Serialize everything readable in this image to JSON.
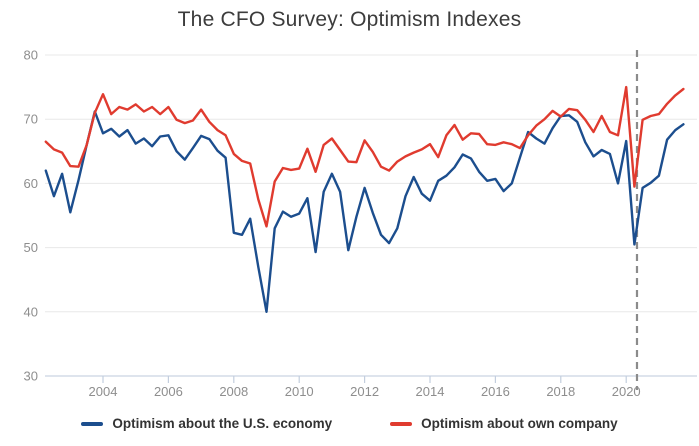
{
  "title": "The CFO Survey: Optimism Indexes",
  "chart_data": {
    "type": "line",
    "x_unit": "quarter",
    "x_start": 2002.25,
    "x_step": 0.25,
    "quarters": [
      "2002 Q2",
      "2002 Q3",
      "2002 Q4",
      "2003 Q1",
      "2003 Q2",
      "2003 Q3",
      "2003 Q4",
      "2004 Q1",
      "2004 Q2",
      "2004 Q3",
      "2004 Q4",
      "2005 Q1",
      "2005 Q2",
      "2005 Q3",
      "2005 Q4",
      "2006 Q1",
      "2006 Q2",
      "2006 Q3",
      "2006 Q4",
      "2007 Q1",
      "2007 Q2",
      "2007 Q3",
      "2007 Q4",
      "2008 Q1",
      "2008 Q2",
      "2008 Q3",
      "2008 Q4",
      "2009 Q1",
      "2009 Q2",
      "2009 Q3",
      "2009 Q4",
      "2010 Q1",
      "2010 Q2",
      "2010 Q3",
      "2010 Q4",
      "2011 Q1",
      "2011 Q2",
      "2011 Q3",
      "2011 Q4",
      "2012 Q1",
      "2012 Q2",
      "2012 Q3",
      "2012 Q4",
      "2013 Q1",
      "2013 Q2",
      "2013 Q3",
      "2013 Q4",
      "2014 Q1",
      "2014 Q2",
      "2014 Q3",
      "2014 Q4",
      "2015 Q1",
      "2015 Q2",
      "2015 Q3",
      "2015 Q4",
      "2016 Q1",
      "2016 Q2",
      "2016 Q3",
      "2016 Q4",
      "2017 Q1",
      "2017 Q2",
      "2017 Q3",
      "2017 Q4",
      "2018 Q1",
      "2018 Q2",
      "2018 Q3",
      "2018 Q4",
      "2019 Q1",
      "2019 Q2",
      "2019 Q3",
      "2019 Q4",
      "2020 Q1",
      "2020 Q2",
      "2020 Q3",
      "2020 Q4",
      "2021 Q1",
      "2021 Q2",
      "2021 Q3",
      "2021 Q4"
    ],
    "series": [
      {
        "name": "Optimism about the U.S. economy",
        "color": "#1c4e8e",
        "values": [
          62.0,
          58.0,
          61.5,
          55.5,
          60.5,
          66.0,
          71.2,
          67.8,
          68.5,
          67.3,
          68.3,
          66.2,
          67.0,
          65.8,
          67.3,
          67.5,
          65.0,
          63.7,
          65.5,
          67.4,
          66.9,
          65.1,
          64.0,
          52.3,
          52.0,
          54.5,
          47.0,
          40.0,
          53.0,
          55.6,
          54.8,
          55.3,
          57.7,
          49.3,
          58.7,
          61.5,
          58.7,
          49.6,
          54.8,
          59.3,
          55.4,
          52.0,
          50.7,
          53.0,
          58.0,
          61.0,
          58.4,
          57.3,
          60.4,
          61.2,
          62.5,
          64.5,
          63.9,
          61.8,
          60.4,
          60.7,
          58.8,
          60.0,
          64.0,
          68.0,
          67.0,
          66.2,
          68.6,
          70.5,
          70.6,
          69.6,
          66.4,
          64.2,
          65.2,
          64.6,
          60.0,
          66.6,
          50.5,
          59.3,
          60.1,
          61.2,
          66.8,
          68.3,
          69.2
        ]
      },
      {
        "name": "Optimism about own company",
        "color": "#e03b2f",
        "values": [
          66.5,
          65.3,
          64.8,
          62.7,
          62.6,
          66.0,
          71.0,
          73.9,
          70.8,
          71.9,
          71.5,
          72.3,
          71.2,
          71.9,
          70.8,
          71.9,
          69.9,
          69.4,
          69.8,
          71.5,
          69.6,
          68.3,
          67.5,
          64.6,
          63.5,
          63.1,
          57.5,
          53.3,
          60.3,
          62.4,
          62.1,
          62.3,
          65.4,
          61.8,
          66.0,
          67.0,
          65.2,
          63.4,
          63.3,
          66.7,
          64.9,
          62.6,
          62.0,
          63.4,
          64.2,
          64.8,
          65.3,
          66.1,
          64.1,
          67.5,
          69.1,
          66.8,
          67.8,
          67.7,
          66.1,
          66.0,
          66.4,
          66.1,
          65.5,
          67.5,
          69.0,
          70.0,
          71.3,
          70.4,
          71.6,
          71.4,
          69.9,
          68.0,
          70.5,
          68.0,
          67.5,
          75.0,
          59.5,
          69.9,
          70.5,
          70.8,
          72.4,
          73.7,
          74.7
        ]
      }
    ],
    "ylim": [
      30,
      80
    ],
    "y_ticks": [
      80,
      70,
      60,
      50,
      40,
      30
    ],
    "x_tick_years": [
      2004,
      2006,
      2008,
      2010,
      2012,
      2014,
      2016,
      2018,
      2020
    ],
    "annotation": {
      "type": "dashed-vline",
      "x_year": 2020.33
    },
    "grid": "horizontal",
    "legend_position": "bottom",
    "colors": {
      "gridline": "#e8e8e8",
      "baseline": "#c9d4e2",
      "tick": "#c3cede",
      "axis_text": "#8e8e8e",
      "dashline": "#8b8b8b",
      "title_text": "#3c3c3c",
      "legend_text": "#333333"
    }
  }
}
